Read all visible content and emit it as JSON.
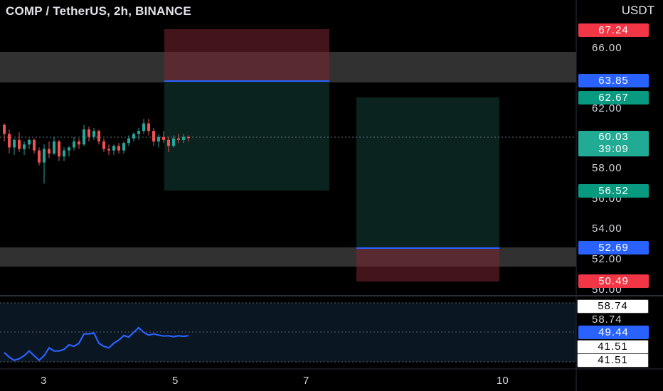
{
  "header": {
    "symbol_title": "COMP / TetherUS, 2h, BINANCE",
    "currency": "USDT"
  },
  "price_axis": {
    "labels": [
      "66.00",
      "62.00",
      "58.00",
      "56.00",
      "54.00",
      "52.00",
      "50.00"
    ]
  },
  "price_tags": [
    {
      "text": "67.24",
      "kind": "stop-loss"
    },
    {
      "text": "63.85",
      "kind": "entry"
    },
    {
      "text": "62.67",
      "kind": "target"
    },
    {
      "text": "60.03",
      "subtext": "39:09",
      "kind": "last-price"
    },
    {
      "text": "56.52",
      "kind": "target"
    },
    {
      "text": "52.69",
      "kind": "entry"
    },
    {
      "text": "50.49",
      "kind": "stop-loss"
    }
  ],
  "indicator_axis": {
    "labels": [
      "58.74",
      "58.74",
      "49.44",
      "41.51",
      "41.51"
    ]
  },
  "time_axis": {
    "labels": [
      "3",
      "5",
      "7",
      "10"
    ]
  },
  "colors": {
    "background": "#000000",
    "zone": "#3a3a3a",
    "short_risk": "#4a1b1f",
    "short_reward": "#0b2722",
    "entry_line": "#2962ff",
    "up_candle": "#26a69a",
    "down_candle": "#ef5350",
    "stop_tag": "#f23645",
    "target_tag": "#089981",
    "entry_tag": "#2962ff",
    "last_tag": "#22ab94",
    "indicator_line": "#2962ff"
  },
  "chart_data": {
    "type": "candlestick",
    "y_range": [
      49.5,
      68
    ],
    "candles": [
      {
        "o": 60.9,
        "h": 61.0,
        "l": 59.8,
        "c": 60.3
      },
      {
        "o": 60.3,
        "h": 60.6,
        "l": 59.0,
        "c": 59.4
      },
      {
        "o": 59.4,
        "h": 60.0,
        "l": 58.9,
        "c": 59.9
      },
      {
        "o": 59.9,
        "h": 60.4,
        "l": 59.1,
        "c": 59.3
      },
      {
        "o": 59.3,
        "h": 59.8,
        "l": 58.9,
        "c": 59.6
      },
      {
        "o": 59.6,
        "h": 60.0,
        "l": 59.3,
        "c": 59.9
      },
      {
        "o": 59.9,
        "h": 60.0,
        "l": 59.0,
        "c": 59.2
      },
      {
        "o": 59.2,
        "h": 59.4,
        "l": 58.2,
        "c": 58.4
      },
      {
        "o": 58.4,
        "h": 59.6,
        "l": 57.0,
        "c": 59.3
      },
      {
        "o": 59.3,
        "h": 59.8,
        "l": 58.7,
        "c": 59.0
      },
      {
        "o": 59.0,
        "h": 60.1,
        "l": 58.9,
        "c": 59.8
      },
      {
        "o": 59.8,
        "h": 59.9,
        "l": 58.5,
        "c": 58.8
      },
      {
        "o": 58.8,
        "h": 59.4,
        "l": 58.5,
        "c": 59.2
      },
      {
        "o": 59.2,
        "h": 59.5,
        "l": 58.8,
        "c": 59.4
      },
      {
        "o": 59.4,
        "h": 60.1,
        "l": 59.2,
        "c": 59.8
      },
      {
        "o": 59.8,
        "h": 60.0,
        "l": 59.3,
        "c": 59.6
      },
      {
        "o": 59.6,
        "h": 60.9,
        "l": 59.5,
        "c": 60.6
      },
      {
        "o": 60.6,
        "h": 60.8,
        "l": 59.8,
        "c": 60.1
      },
      {
        "o": 60.1,
        "h": 60.7,
        "l": 59.9,
        "c": 60.5
      },
      {
        "o": 60.5,
        "h": 60.6,
        "l": 59.6,
        "c": 59.8
      },
      {
        "o": 59.8,
        "h": 60.0,
        "l": 59.1,
        "c": 59.3
      },
      {
        "o": 59.3,
        "h": 59.6,
        "l": 58.9,
        "c": 59.2
      },
      {
        "o": 59.2,
        "h": 59.6,
        "l": 58.9,
        "c": 59.5
      },
      {
        "o": 59.5,
        "h": 59.7,
        "l": 59.0,
        "c": 59.2
      },
      {
        "o": 59.2,
        "h": 59.8,
        "l": 59.0,
        "c": 59.7
      },
      {
        "o": 59.7,
        "h": 60.2,
        "l": 59.5,
        "c": 60.0
      },
      {
        "o": 60.0,
        "h": 60.4,
        "l": 59.8,
        "c": 60.3
      },
      {
        "o": 60.3,
        "h": 60.7,
        "l": 59.9,
        "c": 60.5
      },
      {
        "o": 60.5,
        "h": 61.3,
        "l": 60.3,
        "c": 61.0
      },
      {
        "o": 61.0,
        "h": 61.3,
        "l": 60.2,
        "c": 60.5
      },
      {
        "o": 60.5,
        "h": 60.7,
        "l": 59.5,
        "c": 59.8
      },
      {
        "o": 59.8,
        "h": 60.3,
        "l": 59.4,
        "c": 60.1
      },
      {
        "o": 60.1,
        "h": 60.5,
        "l": 59.7,
        "c": 59.9
      },
      {
        "o": 59.9,
        "h": 60.1,
        "l": 59.1,
        "c": 59.5
      },
      {
        "o": 59.5,
        "h": 60.2,
        "l": 59.4,
        "c": 60.0
      },
      {
        "o": 60.0,
        "h": 60.3,
        "l": 59.7,
        "c": 59.9
      },
      {
        "o": 59.9,
        "h": 60.3,
        "l": 59.7,
        "c": 60.1
      },
      {
        "o": 60.1,
        "h": 60.2,
        "l": 59.8,
        "c": 60.03
      }
    ],
    "zones": [
      {
        "low": 63.9,
        "high": 65.6
      },
      {
        "low": 51.5,
        "high": 52.7
      }
    ],
    "positions": [
      {
        "type": "short",
        "entry": 63.85,
        "stop": 67.24,
        "target": 56.52
      },
      {
        "type": "long",
        "entry": 52.69,
        "stop": 50.49,
        "target": 62.67
      }
    ],
    "indicator": {
      "y_range": [
        41,
        60
      ],
      "values": [
        44,
        42.5,
        41.5,
        42,
        43,
        44.5,
        43,
        41.5,
        43,
        45.5,
        44.5,
        44.5,
        45,
        46.5,
        46,
        47,
        50,
        50,
        50.3,
        47,
        46,
        45.5,
        47,
        48,
        49.5,
        49,
        50.5,
        52,
        50.5,
        49.6,
        50,
        49.6,
        49.3,
        49.4,
        49.1,
        49.4,
        49.2,
        49.44
      ]
    }
  }
}
